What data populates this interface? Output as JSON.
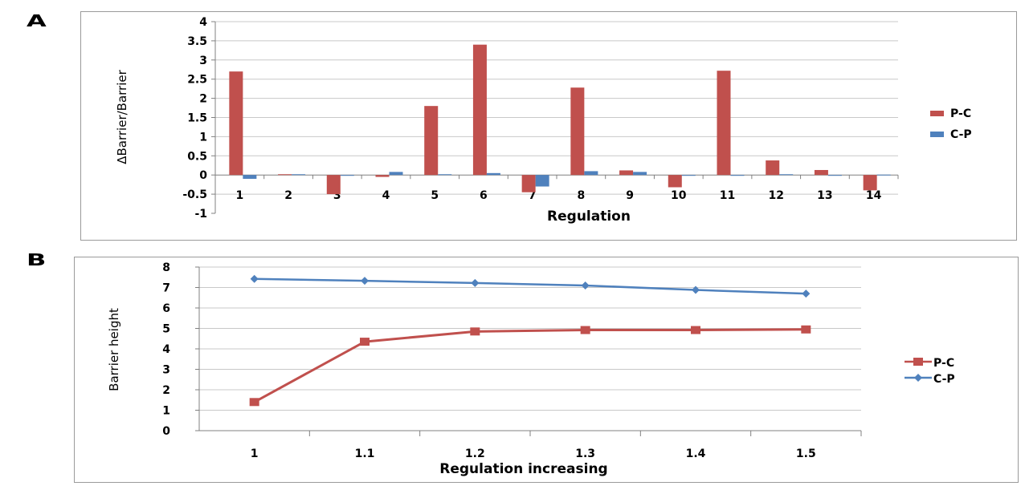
{
  "panels": {
    "a_label": "A",
    "b_label": "B"
  },
  "colors": {
    "pc": "#c0504d",
    "cp": "#4f81bd",
    "grid": "#c8c8c8",
    "axis": "#808080"
  },
  "chart_data": [
    {
      "id": "A",
      "type": "bar",
      "categories": [
        "1",
        "2",
        "3",
        "4",
        "5",
        "6",
        "7",
        "8",
        "9",
        "10",
        "11",
        "12",
        "13",
        "14"
      ],
      "series": [
        {
          "name": "P-C",
          "values": [
            2.7,
            0.02,
            -0.5,
            -0.05,
            1.8,
            3.4,
            -0.45,
            2.28,
            0.12,
            -0.32,
            2.72,
            0.38,
            0.13,
            -0.4
          ]
        },
        {
          "name": "C-P",
          "values": [
            -0.1,
            0.02,
            0.0,
            0.08,
            0.02,
            0.05,
            -0.3,
            0.1,
            0.08,
            0.0,
            0.0,
            0.02,
            0.0,
            0.01
          ]
        }
      ],
      "xlabel": "Regulation",
      "ylabel": "ΔBarrier/Barrier",
      "ylim": [
        -1,
        4
      ],
      "yticks": [
        "-1",
        "-0.5",
        "0",
        "0.5",
        "1",
        "1.5",
        "2",
        "2.5",
        "3",
        "3.5",
        "4"
      ],
      "grid": true,
      "legend": "right"
    },
    {
      "id": "B",
      "type": "line",
      "x": [
        "1",
        "1.1",
        "1.2",
        "1.3",
        "1.4",
        "1.5"
      ],
      "series": [
        {
          "name": "P-C",
          "values": [
            1.4,
            4.35,
            4.85,
            4.92,
            4.92,
            4.95
          ],
          "marker": "square"
        },
        {
          "name": "C-P",
          "values": [
            7.42,
            7.33,
            7.22,
            7.1,
            6.88,
            6.7
          ],
          "marker": "diamond"
        }
      ],
      "xlabel": "Regulation increasing",
      "ylabel": "Barrier height",
      "ylim": [
        0,
        8
      ],
      "yticks": [
        "0",
        "1",
        "2",
        "3",
        "4",
        "5",
        "6",
        "7",
        "8"
      ],
      "grid": true,
      "legend": "right"
    }
  ]
}
